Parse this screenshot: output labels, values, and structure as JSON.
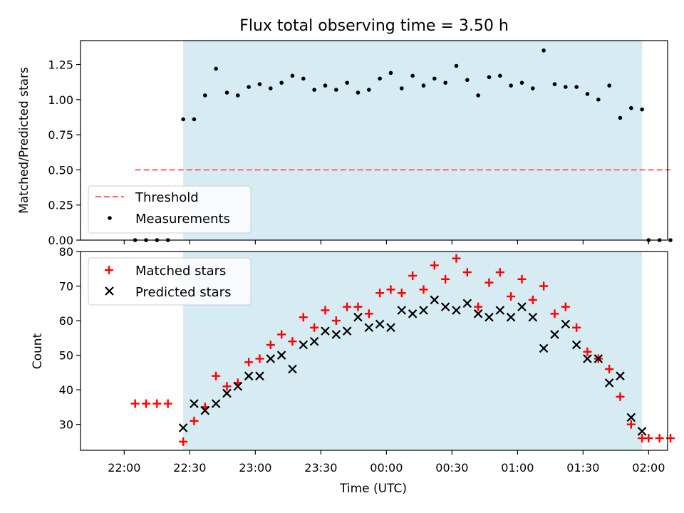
{
  "chart_data": [
    {
      "type": "scatter",
      "title": "Flux total observing time = 3.50 h",
      "xlabel": "",
      "ylabel": "Matched/Predicted stars",
      "ylim": [
        0,
        1.42
      ],
      "yticks": [
        "0.00",
        "0.25",
        "0.50",
        "0.75",
        "1.00",
        "1.25"
      ],
      "ytick_values": [
        0,
        0.25,
        0.5,
        0.75,
        1.0,
        1.25
      ],
      "observing_window": [
        "22:27",
        "01:57"
      ],
      "shade_color": "#add8e6",
      "threshold": {
        "name": "Threshold",
        "value": 0.5,
        "x_start": "22:05",
        "x_end": "02:10",
        "color": "#ff6666"
      },
      "series": [
        {
          "name": "Measurements",
          "color": "#000000",
          "x": [
            "22:05",
            "22:10",
            "22:15",
            "22:20",
            "22:27",
            "22:32",
            "22:37",
            "22:42",
            "22:47",
            "22:52",
            "22:57",
            "23:02",
            "23:07",
            "23:12",
            "23:17",
            "23:22",
            "23:27",
            "23:32",
            "23:37",
            "23:42",
            "23:47",
            "23:52",
            "23:57",
            "00:02",
            "00:07",
            "00:12",
            "00:17",
            "00:22",
            "00:27",
            "00:32",
            "00:37",
            "00:42",
            "00:47",
            "00:52",
            "00:57",
            "01:02",
            "01:07",
            "01:12",
            "01:17",
            "01:22",
            "01:27",
            "01:32",
            "01:37",
            "01:42",
            "01:47",
            "01:52",
            "01:57",
            "02:00",
            "02:05",
            "02:10"
          ],
          "y": [
            0,
            0,
            0,
            0,
            0.86,
            0.86,
            1.03,
            1.22,
            1.05,
            1.03,
            1.09,
            1.11,
            1.08,
            1.12,
            1.17,
            1.15,
            1.07,
            1.1,
            1.07,
            1.12,
            1.05,
            1.07,
            1.15,
            1.19,
            1.08,
            1.17,
            1.1,
            1.15,
            1.12,
            1.24,
            1.14,
            1.03,
            1.16,
            1.17,
            1.1,
            1.12,
            1.08,
            1.35,
            1.11,
            1.09,
            1.09,
            1.04,
            1.0,
            1.1,
            0.87,
            0.94,
            0.93,
            0,
            0,
            0
          ]
        }
      ]
    },
    {
      "type": "scatter",
      "title": "",
      "xlabel": "Time (UTC)",
      "ylabel": "Count",
      "ylim": [
        22.5,
        80
      ],
      "yticks": [
        "30",
        "40",
        "50",
        "60",
        "70",
        "80"
      ],
      "ytick_values": [
        30,
        40,
        50,
        60,
        70,
        80
      ],
      "xticks": [
        "22:00",
        "22:30",
        "23:00",
        "23:30",
        "00:00",
        "00:30",
        "01:00",
        "01:30",
        "02:00"
      ],
      "observing_window": [
        "22:27",
        "01:57"
      ],
      "shade_color": "#add8e6",
      "series": [
        {
          "name": "Matched stars",
          "color": "#ff0000",
          "marker": "plus",
          "x": [
            "22:05",
            "22:10",
            "22:15",
            "22:20",
            "22:27",
            "22:32",
            "22:37",
            "22:42",
            "22:47",
            "22:52",
            "22:57",
            "23:02",
            "23:07",
            "23:12",
            "23:17",
            "23:22",
            "23:27",
            "23:32",
            "23:37",
            "23:42",
            "23:47",
            "23:52",
            "23:57",
            "00:02",
            "00:07",
            "00:12",
            "00:17",
            "00:22",
            "00:27",
            "00:32",
            "00:37",
            "00:42",
            "00:47",
            "00:52",
            "00:57",
            "01:02",
            "01:07",
            "01:12",
            "01:17",
            "01:22",
            "01:27",
            "01:32",
            "01:37",
            "01:42",
            "01:47",
            "01:52",
            "01:57",
            "02:00",
            "02:05",
            "02:10"
          ],
          "y": [
            36,
            36,
            36,
            36,
            25,
            31,
            35,
            44,
            41,
            42,
            48,
            49,
            53,
            56,
            54,
            61,
            58,
            63,
            60,
            64,
            64,
            62,
            68,
            69,
            68,
            73,
            69,
            76,
            72,
            78,
            74,
            64,
            71,
            74,
            67,
            72,
            66,
            70,
            62,
            64,
            58,
            51,
            49,
            46,
            38,
            30,
            26,
            26,
            26,
            26
          ]
        },
        {
          "name": "Predicted stars",
          "color": "#000000",
          "marker": "x",
          "x": [
            "22:27",
            "22:32",
            "22:37",
            "22:42",
            "22:47",
            "22:52",
            "22:57",
            "23:02",
            "23:07",
            "23:12",
            "23:17",
            "23:22",
            "23:27",
            "23:32",
            "23:37",
            "23:42",
            "23:47",
            "23:52",
            "23:57",
            "00:02",
            "00:07",
            "00:12",
            "00:17",
            "00:22",
            "00:27",
            "00:32",
            "00:37",
            "00:42",
            "00:47",
            "00:52",
            "00:57",
            "01:02",
            "01:07",
            "01:12",
            "01:17",
            "01:22",
            "01:27",
            "01:32",
            "01:37",
            "01:42",
            "01:47",
            "01:52",
            "01:57"
          ],
          "y": [
            29,
            36,
            34,
            36,
            39,
            41,
            44,
            44,
            49,
            50,
            46,
            53,
            54,
            57,
            56,
            57,
            61,
            58,
            59,
            58,
            63,
            62,
            63,
            66,
            64,
            63,
            65,
            62,
            61,
            63,
            61,
            64,
            61,
            52,
            56,
            59,
            53,
            49,
            49,
            42,
            44,
            32,
            28
          ]
        }
      ]
    }
  ]
}
